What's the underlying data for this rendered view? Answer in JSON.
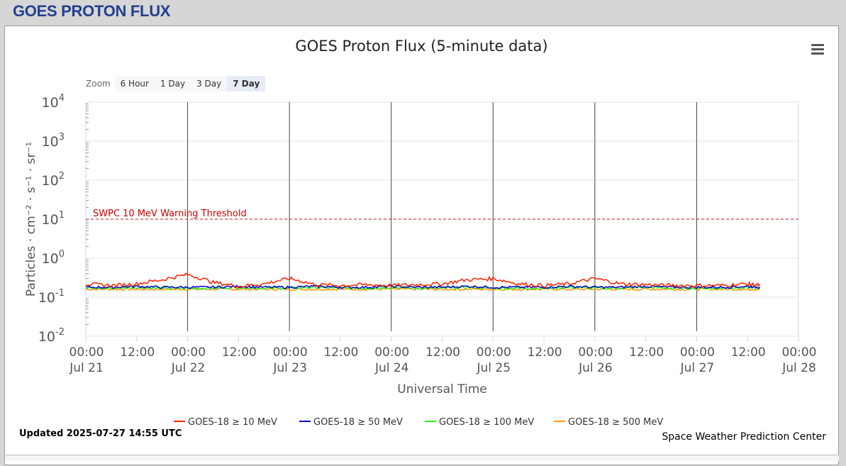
{
  "page": {
    "header": "GOES PROTON FLUX"
  },
  "toolbar": {
    "zoom_label": "Zoom",
    "zoom_options": [
      "6 Hour",
      "1 Day",
      "3 Day",
      "7 Day"
    ],
    "zoom_selected": "7 Day",
    "menu_icon": "hamburger-menu-icon"
  },
  "footer": {
    "updated": "Updated 2025-07-27 14:55 UTC",
    "credit": "Space Weather Prediction Center"
  },
  "chart_data": {
    "type": "line",
    "title": "GOES Proton Flux (5-minute data)",
    "xlabel": "Universal Time",
    "ylabel": "Particles · cm⁻² · s⁻¹ · sr⁻¹",
    "yscale": "log",
    "ylim": [
      0.01,
      10000
    ],
    "y_ticks": [
      {
        "base": "10",
        "exp": "-2"
      },
      {
        "base": "10",
        "exp": "-1"
      },
      {
        "base": "10",
        "exp": "0"
      },
      {
        "base": "10",
        "exp": "1"
      },
      {
        "base": "10",
        "exp": "2"
      },
      {
        "base": "10",
        "exp": "3"
      },
      {
        "base": "10",
        "exp": "4"
      }
    ],
    "x_range": [
      "2025-07-21 00:00",
      "2025-07-28 00:00"
    ],
    "x_ticks": [
      {
        "time": "00:00",
        "date": "Jul 21"
      },
      {
        "time": "12:00",
        "date": ""
      },
      {
        "time": "00:00",
        "date": "Jul 22"
      },
      {
        "time": "12:00",
        "date": ""
      },
      {
        "time": "00:00",
        "date": "Jul 23"
      },
      {
        "time": "12:00",
        "date": ""
      },
      {
        "time": "00:00",
        "date": "Jul 24"
      },
      {
        "time": "12:00",
        "date": ""
      },
      {
        "time": "00:00",
        "date": "Jul 25"
      },
      {
        "time": "12:00",
        "date": ""
      },
      {
        "time": "00:00",
        "date": "Jul 26"
      },
      {
        "time": "12:00",
        "date": ""
      },
      {
        "time": "00:00",
        "date": "Jul 27"
      },
      {
        "time": "12:00",
        "date": ""
      },
      {
        "time": "00:00",
        "date": "Jul 28"
      }
    ],
    "day_markers": [
      "Jul 22",
      "Jul 23",
      "Jul 24",
      "Jul 25",
      "Jul 26",
      "Jul 27"
    ],
    "threshold": {
      "label": "SWPC 10 MeV Warning Threshold",
      "value": 10,
      "color": "#cc0000"
    },
    "grid": true,
    "legend_position": "bottom-center",
    "x": [
      "Jul 21 00:00",
      "Jul 21 06:00",
      "Jul 21 12:00",
      "Jul 21 18:00",
      "Jul 22 00:00",
      "Jul 22 06:00",
      "Jul 22 12:00",
      "Jul 22 18:00",
      "Jul 23 00:00",
      "Jul 23 06:00",
      "Jul 23 12:00",
      "Jul 23 18:00",
      "Jul 24 00:00",
      "Jul 24 06:00",
      "Jul 24 12:00",
      "Jul 24 18:00",
      "Jul 25 00:00",
      "Jul 25 06:00",
      "Jul 25 12:00",
      "Jul 25 18:00",
      "Jul 26 00:00",
      "Jul 26 06:00",
      "Jul 26 12:00",
      "Jul 26 18:00",
      "Jul 27 00:00",
      "Jul 27 06:00",
      "Jul 27 12:00",
      "Jul 27 14:55"
    ],
    "series": [
      {
        "name": "GOES-18 ≥ 10 MeV",
        "color": "#ff2200",
        "values": [
          0.22,
          0.2,
          0.22,
          0.28,
          0.38,
          0.24,
          0.19,
          0.22,
          0.3,
          0.21,
          0.2,
          0.21,
          0.2,
          0.21,
          0.22,
          0.28,
          0.3,
          0.22,
          0.2,
          0.22,
          0.3,
          0.22,
          0.21,
          0.2,
          0.2,
          0.2,
          0.22,
          0.2
        ]
      },
      {
        "name": "GOES-18 ≥ 50 MeV",
        "color": "#0000cc",
        "values": [
          0.18,
          0.18,
          0.19,
          0.18,
          0.18,
          0.18,
          0.19,
          0.18,
          0.18,
          0.19,
          0.18,
          0.18,
          0.19,
          0.18,
          0.18,
          0.19,
          0.18,
          0.18,
          0.18,
          0.19,
          0.18,
          0.18,
          0.19,
          0.18,
          0.18,
          0.18,
          0.19,
          0.18
        ]
      },
      {
        "name": "GOES-18 ≥ 100 MeV",
        "color": "#22ee22",
        "values": [
          0.17,
          0.17,
          0.18,
          0.17,
          0.17,
          0.17,
          0.18,
          0.17,
          0.17,
          0.18,
          0.17,
          0.17,
          0.18,
          0.17,
          0.17,
          0.18,
          0.17,
          0.17,
          0.17,
          0.18,
          0.17,
          0.17,
          0.18,
          0.17,
          0.17,
          0.17,
          0.18,
          0.17
        ]
      },
      {
        "name": "GOES-18 ≥ 500 MeV",
        "color": "#ff9900",
        "values": [
          0.16,
          0.16,
          0.16,
          0.16,
          0.16,
          0.16,
          0.16,
          0.16,
          0.16,
          0.16,
          0.16,
          0.16,
          0.16,
          0.16,
          0.16,
          0.16,
          0.16,
          0.16,
          0.16,
          0.16,
          0.16,
          0.16,
          0.16,
          0.16,
          0.16,
          0.16,
          0.16,
          0.16
        ]
      }
    ]
  }
}
